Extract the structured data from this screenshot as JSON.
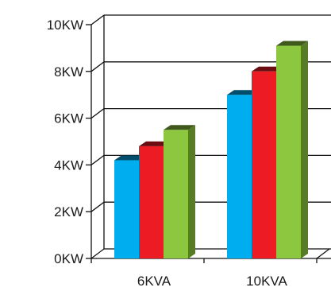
{
  "chart_data": {
    "type": "bar",
    "categories": [
      "6KVA",
      "10KVA"
    ],
    "series": [
      {
        "values": [
          4.2,
          7.0
        ],
        "color": "#00aeef"
      },
      {
        "values": [
          4.8,
          8.0
        ],
        "color": "#ed1c24"
      },
      {
        "values": [
          5.5,
          9.1
        ],
        "color": "#8dc63f"
      }
    ],
    "ylim": [
      0,
      10
    ],
    "y_ticks": [
      0,
      2,
      4,
      6,
      8,
      10
    ],
    "y_tick_labels": [
      "0KW",
      "2KW",
      "4KW",
      "6KW",
      "8KW",
      "10KW"
    ],
    "grid": true,
    "legend": "none",
    "style": "3d"
  }
}
